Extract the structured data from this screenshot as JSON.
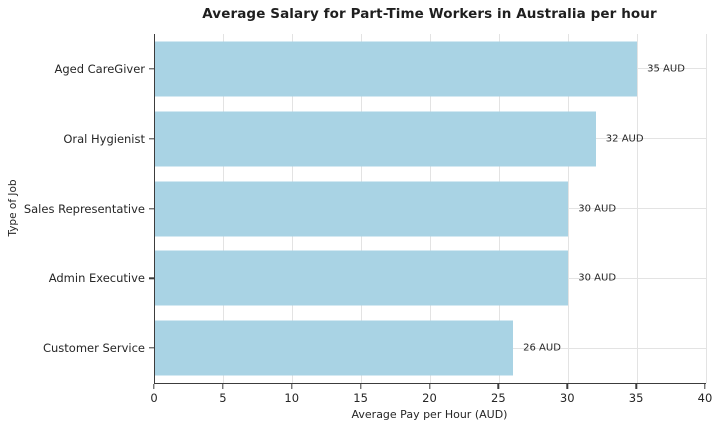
{
  "chart_data": {
    "type": "bar",
    "orientation": "horizontal",
    "title": "Average Salary for Part-Time Workers in Australia per hour",
    "categories": [
      "Aged CareGiver",
      "Oral Hygienist",
      "Sales Representative",
      "Admin Executive",
      "Customer Service"
    ],
    "values": [
      35,
      32,
      30,
      30,
      26
    ],
    "value_labels": [
      "35 AUD",
      "32 AUD",
      "30 AUD",
      "30 AUD",
      "26 AUD"
    ],
    "xlabel": "Average Pay per Hour (AUD)",
    "ylabel": "Type of Job",
    "xlim": [
      0,
      40
    ],
    "xticks": [
      0,
      5,
      10,
      15,
      20,
      25,
      30,
      35,
      40
    ],
    "grid": "both",
    "legend": "none",
    "bar_color": "#a9d3e4",
    "grid_color": "#e3e3e3",
    "axis_color": "#3c3c3c",
    "text_color": "#262626"
  }
}
